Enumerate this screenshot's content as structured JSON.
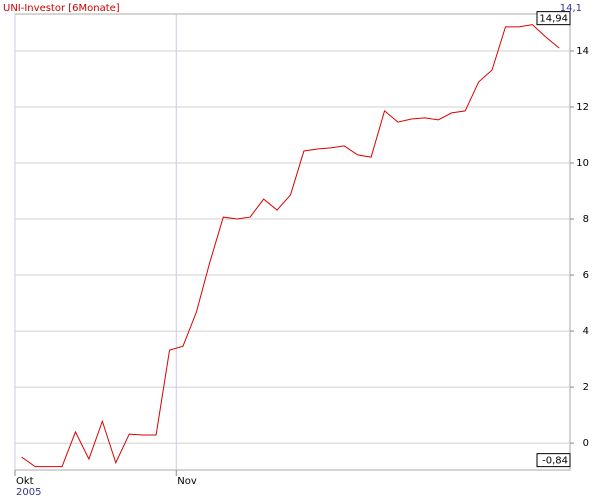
{
  "chart_data": {
    "type": "line",
    "title": "UNI-Investor [6Monate]",
    "series": [
      {
        "name": "UNI-Investor",
        "color": "#dd0000",
        "values": [
          -0.5,
          -0.84,
          -0.84,
          -0.84,
          0.4,
          -0.57,
          0.78,
          -0.7,
          0.32,
          0.29,
          0.29,
          3.32,
          3.46,
          4.68,
          6.46,
          8.07,
          8.0,
          8.07,
          8.71,
          8.32,
          8.86,
          10.43,
          10.5,
          10.54,
          10.61,
          10.29,
          10.21,
          11.86,
          11.46,
          11.57,
          11.61,
          11.54,
          11.79,
          11.86,
          12.89,
          13.32,
          14.86,
          14.86,
          14.94,
          14.5,
          14.1
        ]
      }
    ],
    "xlim": [
      -0.5,
      40.8
    ],
    "xticks": [
      {
        "value": -0.5,
        "label": "Okt"
      },
      {
        "value": 11.5,
        "label": "Nov"
      }
    ],
    "x_year_label": "2005",
    "ylim": [
      -0.96,
      15.32
    ],
    "yticks": [
      0,
      2,
      4,
      6,
      8,
      10,
      12,
      14
    ],
    "grid": true,
    "last_label": {
      "value": 14.1,
      "label": "14,1"
    },
    "max_label": {
      "value": 14.94,
      "label": "14,94"
    },
    "min_label": {
      "value": -0.84,
      "label": "-0,84"
    }
  }
}
